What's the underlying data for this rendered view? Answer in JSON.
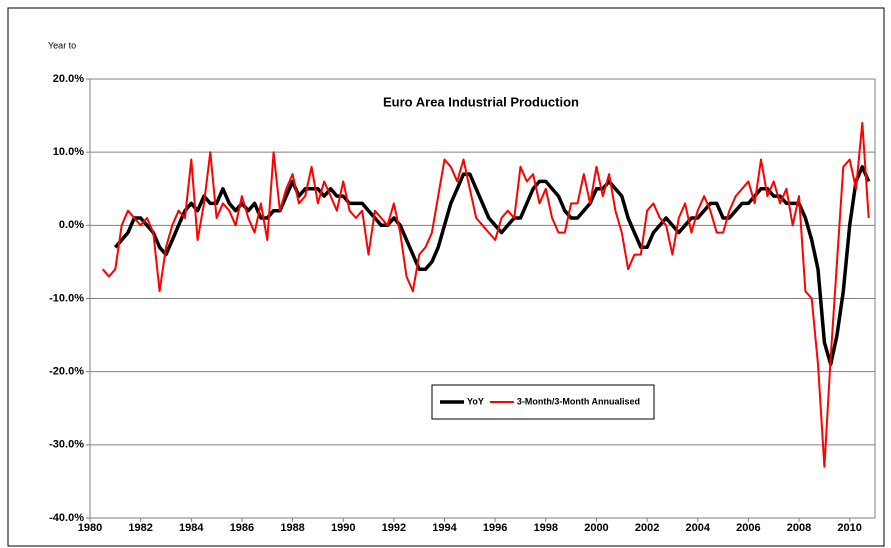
{
  "chart_data": {
    "type": "line",
    "title": "Euro Area Industrial Production",
    "y_label": "Year to",
    "x": [
      1980.5,
      1980.75,
      1981,
      1981.25,
      1981.5,
      1981.75,
      1982,
      1982.25,
      1982.5,
      1982.75,
      1983,
      1983.25,
      1983.5,
      1983.75,
      1984,
      1984.25,
      1984.5,
      1984.75,
      1985,
      1985.25,
      1985.5,
      1985.75,
      1986,
      1986.25,
      1986.5,
      1986.75,
      1987,
      1987.25,
      1987.5,
      1987.75,
      1988,
      1988.25,
      1988.5,
      1988.75,
      1989,
      1989.25,
      1989.5,
      1989.75,
      1990,
      1990.25,
      1990.5,
      1990.75,
      1991,
      1991.25,
      1991.5,
      1991.75,
      1992,
      1992.25,
      1992.5,
      1992.75,
      1993,
      1993.25,
      1993.5,
      1993.75,
      1994,
      1994.25,
      1994.5,
      1994.75,
      1995,
      1995.25,
      1995.5,
      1995.75,
      1996,
      1996.25,
      1996.5,
      1996.75,
      1997,
      1997.25,
      1997.5,
      1997.75,
      1998,
      1998.25,
      1998.5,
      1998.75,
      1999,
      1999.25,
      1999.5,
      1999.75,
      2000,
      2000.25,
      2000.5,
      2000.75,
      2001,
      2001.25,
      2001.5,
      2001.75,
      2002,
      2002.25,
      2002.5,
      2002.75,
      2003,
      2003.25,
      2003.5,
      2003.75,
      2004,
      2004.25,
      2004.5,
      2004.75,
      2005,
      2005.25,
      2005.5,
      2005.75,
      2006,
      2006.25,
      2006.5,
      2006.75,
      2007,
      2007.25,
      2007.5,
      2007.75,
      2008,
      2008.25,
      2008.5,
      2008.75,
      2009,
      2009.25,
      2009.5,
      2009.75,
      2010,
      2010.25,
      2010.5,
      2010.75
    ],
    "series": [
      {
        "name": "YoY",
        "color": "#000000",
        "width": 3.5,
        "values": [
          null,
          null,
          -3,
          -2,
          -1,
          1,
          1,
          0,
          -1,
          -3,
          -4,
          -2,
          0,
          2,
          3,
          2,
          4,
          3,
          3,
          5,
          3,
          2,
          3,
          2,
          3,
          1,
          1,
          2,
          2,
          4,
          6,
          4,
          5,
          5,
          5,
          4,
          5,
          4,
          4,
          3,
          3,
          3,
          2,
          1,
          0,
          0,
          1,
          0,
          -2,
          -4,
          -6,
          -6,
          -5,
          -3,
          0,
          3,
          5,
          7,
          7,
          5,
          3,
          1,
          0,
          -1,
          0,
          1,
          1,
          3,
          5,
          6,
          6,
          5,
          4,
          2,
          1,
          1,
          2,
          3,
          5,
          5,
          6,
          5,
          4,
          1,
          -1,
          -3,
          -3,
          -1,
          0,
          1,
          0,
          -1,
          0,
          1,
          1,
          2,
          3,
          3,
          1,
          1,
          2,
          3,
          3,
          4,
          5,
          5,
          4,
          4,
          3,
          3,
          3,
          1,
          -2,
          -6,
          -16,
          -19,
          -15,
          -9,
          0,
          6,
          8,
          6
        ]
      },
      {
        "name": "3-Month/3-Month Annualised",
        "color": "#ff0000",
        "width": 2,
        "values": [
          -6,
          -7,
          -6,
          0,
          2,
          1,
          0,
          1,
          -1,
          -9,
          -3,
          0,
          2,
          1,
          9,
          -2,
          3,
          10,
          1,
          3,
          2,
          0,
          4,
          1,
          -1,
          3,
          -2,
          10,
          2,
          5,
          7,
          3,
          4,
          8,
          3,
          6,
          4,
          2,
          6,
          2,
          1,
          2,
          -4,
          2,
          1,
          0,
          3,
          -1,
          -7,
          -9,
          -4,
          -3,
          -1,
          4,
          9,
          8,
          6,
          9,
          5,
          1,
          0,
          -1,
          -2,
          1,
          2,
          1,
          8,
          6,
          7,
          3,
          5,
          1,
          -1,
          -1,
          3,
          3,
          7,
          3,
          8,
          4,
          7,
          2,
          -1,
          -6,
          -4,
          -4,
          2,
          3,
          1,
          0,
          -4,
          1,
          3,
          -1,
          2,
          4,
          2,
          -1,
          -1,
          2,
          4,
          5,
          6,
          3,
          9,
          4,
          6,
          3,
          5,
          0,
          4,
          -9,
          -10,
          -19,
          -33,
          -18,
          -5,
          8,
          9,
          5,
          14,
          1
        ]
      }
    ],
    "xlim": [
      1980,
      2011
    ],
    "xticks": [
      1980,
      1982,
      1984,
      1986,
      1988,
      1990,
      1992,
      1994,
      1996,
      1998,
      2000,
      2002,
      2004,
      2006,
      2008,
      2010
    ],
    "ylim": [
      -40,
      20
    ],
    "yticks": [
      {
        "value": -40,
        "label": "-40.0%"
      },
      {
        "value": -30,
        "label": "-30.0%"
      },
      {
        "value": -20,
        "label": "-20.0%"
      },
      {
        "value": -10,
        "label": "-10.0%"
      },
      {
        "value": 0,
        "label": "0.0%"
      },
      {
        "value": 10,
        "label": "10.0%"
      },
      {
        "value": 20,
        "label": "20.0%"
      }
    ],
    "grid": true
  }
}
